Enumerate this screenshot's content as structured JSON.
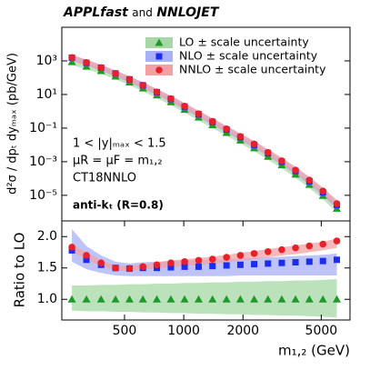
{
  "chart_data": [
    {
      "type": "scatter",
      "title_parts": [
        "APPLfast",
        "and",
        "NNLOJET"
      ],
      "y_label": "d²σ / dpₜ dyₘₐₓ (pb/GeV)",
      "annotations": [
        "1 < |y|ₘₐₓ < 1.5",
        "μR = μF = m₁,₂",
        "CT18NNLO",
        "anti-kₜ (R=0.8)"
      ],
      "x": [
        270,
        320,
        380,
        450,
        530,
        620,
        730,
        860,
        1010,
        1190,
        1400,
        1650,
        1940,
        2280,
        2680,
        3150,
        3700,
        4350,
        5100,
        6000
      ],
      "xlim": [
        240,
        7000
      ],
      "x_log": true,
      "ylim": [
        3e-07,
        100000
      ],
      "y_log": true,
      "yticks": [
        {
          "value": 1000,
          "label": "10³"
        },
        {
          "value": 10,
          "label": "10¹"
        },
        {
          "value": 0.1,
          "label": "10⁻¹"
        },
        {
          "value": 0.001,
          "label": "10⁻³"
        },
        {
          "value": 1e-05,
          "label": "10⁻⁵"
        }
      ],
      "legend": "upper right",
      "series": [
        {
          "name": "LO ± scale uncertainty",
          "color": "#1f9a2a",
          "band_color": "#a6d8a6",
          "marker": "triangle",
          "values": [
            870,
            467,
            252,
            119,
            53.3,
            23.4,
            9.1,
            3.56,
            1.25,
            0.437,
            0.153,
            0.0534,
            0.0186,
            0.00648,
            0.00202,
            0.000626,
            0.000174,
            4.29e-05,
            9.47e-06,
            1.64e-06
          ]
        },
        {
          "name": "NLO ± scale uncertainty",
          "color": "#1c2cf0",
          "band_color": "#aab0f5",
          "marker": "square",
          "values": [
            1550,
            761,
            391,
            178,
            79.4,
            35.1,
            13.7,
            5.37,
            1.9,
            0.664,
            0.234,
            0.0822,
            0.0288,
            0.0101,
            0.00317,
            0.000989,
            0.000277,
            6.86e-05,
            1.52e-05,
            2.67e-06
          ]
        },
        {
          "name": "NNLO ± scale uncertainty",
          "color": "#e8202a",
          "band_color": "#f2a0a4",
          "marker": "circle",
          "values": [
            1580,
            794,
            398,
            178,
            79.4,
            35.5,
            14.1,
            5.62,
            2.0,
            0.708,
            0.251,
            0.0891,
            0.0316,
            0.0112,
            0.00355,
            0.00112,
            0.000316,
            7.94e-05,
            1.78e-05,
            3.16e-06
          ]
        }
      ]
    },
    {
      "type": "scatter",
      "y_label": "Ratio to LO",
      "x_label": "m₁,₂ (GeV)",
      "x": [
        270,
        320,
        380,
        450,
        530,
        620,
        730,
        860,
        1010,
        1190,
        1400,
        1650,
        1940,
        2280,
        2680,
        3150,
        3700,
        4350,
        5100,
        6000
      ],
      "xlim": [
        240,
        7000
      ],
      "x_log": true,
      "xticks": [
        500,
        1000,
        2000,
        5000
      ],
      "ylim": [
        0.67,
        2.25
      ],
      "yticks": [
        {
          "value": 1,
          "label": "1.0"
        },
        {
          "value": 1.5,
          "label": "1.5"
        },
        {
          "value": 2,
          "label": "2.0"
        }
      ],
      "series": [
        {
          "name": "LO",
          "color": "#1f9a2a",
          "band_color": "#a6d8a6",
          "marker": "triangle",
          "values": [
            1,
            1,
            1,
            1,
            1,
            1,
            1,
            1,
            1,
            1,
            1,
            1,
            1,
            1,
            1,
            1,
            1,
            1,
            1,
            1
          ],
          "low": [
            0.82,
            0.81,
            0.81,
            0.8,
            0.8,
            0.79,
            0.79,
            0.78,
            0.78,
            0.77,
            0.77,
            0.76,
            0.76,
            0.75,
            0.75,
            0.74,
            0.74,
            0.73,
            0.72,
            0.71
          ],
          "high": [
            1.22,
            1.22,
            1.23,
            1.23,
            1.24,
            1.24,
            1.25,
            1.25,
            1.26,
            1.26,
            1.27,
            1.27,
            1.28,
            1.28,
            1.29,
            1.29,
            1.3,
            1.3,
            1.31,
            1.32
          ]
        },
        {
          "name": "NLO",
          "color": "#1c2cf0",
          "band_color": "#aab0f5",
          "marker": "square",
          "values": [
            1.78,
            1.63,
            1.55,
            1.5,
            1.49,
            1.5,
            1.5,
            1.51,
            1.52,
            1.52,
            1.53,
            1.54,
            1.55,
            1.56,
            1.57,
            1.58,
            1.59,
            1.6,
            1.61,
            1.63
          ],
          "low": [
            1.6,
            1.48,
            1.42,
            1.38,
            1.37,
            1.37,
            1.37,
            1.37,
            1.37,
            1.37,
            1.37,
            1.37,
            1.38,
            1.38,
            1.38,
            1.38,
            1.38,
            1.38,
            1.38,
            1.38
          ],
          "high": [
            2.12,
            1.85,
            1.7,
            1.6,
            1.57,
            1.59,
            1.6,
            1.61,
            1.62,
            1.62,
            1.63,
            1.64,
            1.65,
            1.66,
            1.67,
            1.68,
            1.69,
            1.7,
            1.71,
            1.73
          ]
        },
        {
          "name": "NNLO",
          "color": "#e8202a",
          "band_color": "#f2a0a4",
          "marker": "circle",
          "values": [
            1.83,
            1.7,
            1.58,
            1.5,
            1.49,
            1.52,
            1.55,
            1.58,
            1.6,
            1.62,
            1.64,
            1.67,
            1.7,
            1.73,
            1.76,
            1.79,
            1.82,
            1.85,
            1.88,
            1.93
          ],
          "low": [
            1.76,
            1.64,
            1.53,
            1.46,
            1.45,
            1.47,
            1.49,
            1.51,
            1.53,
            1.55,
            1.57,
            1.59,
            1.62,
            1.64,
            1.67,
            1.7,
            1.72,
            1.75,
            1.78,
            1.82
          ],
          "high": [
            1.88,
            1.75,
            1.62,
            1.54,
            1.53,
            1.56,
            1.59,
            1.62,
            1.64,
            1.66,
            1.68,
            1.71,
            1.74,
            1.77,
            1.8,
            1.83,
            1.86,
            1.89,
            1.92,
            1.97
          ]
        }
      ]
    }
  ]
}
